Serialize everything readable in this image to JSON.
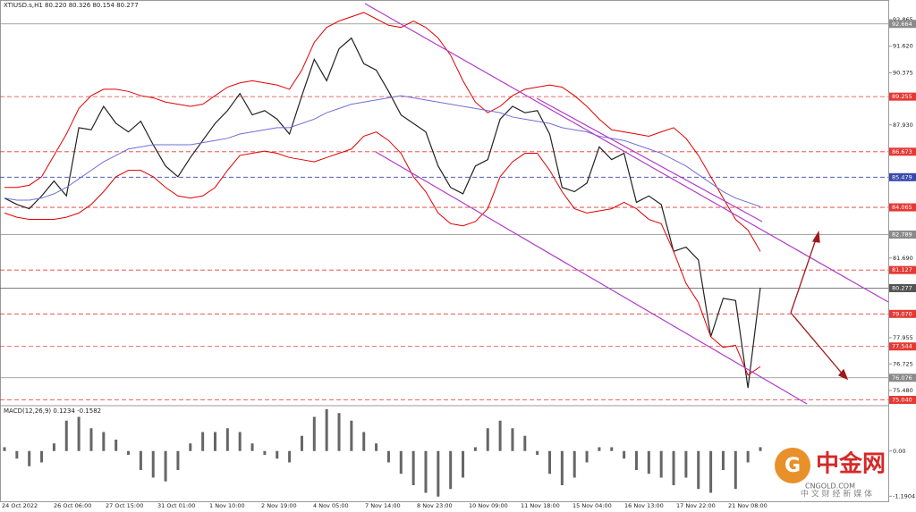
{
  "chart_data": {
    "type": "line",
    "header": "XTIUSD.s,H1  80.220 80.326 80.154 80.277",
    "x_labels": [
      "24 Oct 2022",
      "26 Oct 06:00",
      "27 Oct 15:00",
      "31 Oct 01:00",
      "1 Nov 10:00",
      "2 Nov 19:00",
      "4 Nov 05:00",
      "7 Nov 14:00",
      "8 Nov 23:00",
      "10 Nov 09:00",
      "11 Nov 18:00",
      "15 Nov 04:00",
      "16 Nov 13:00",
      "17 Nov 22:00",
      "21 Nov 08:00"
    ],
    "ylim": [
      74.81,
      93.45
    ],
    "yticks": [
      92.865,
      {
        "value": 91.62,
        "label": "91.620"
      },
      90.375,
      {
        "value": 87.93,
        "label": "87.930"
      },
      {
        "value": 81.69,
        "label": "81.690"
      },
      77.955,
      76.725,
      {
        "value": 75.48,
        "label": "75.480"
      }
    ],
    "series": [
      {
        "name": "Close",
        "color": "#222222",
        "values": [
          84.5,
          84.2,
          84.0,
          84.6,
          85.3,
          84.6,
          87.8,
          87.7,
          88.8,
          88.0,
          87.6,
          88.1,
          87.0,
          86.0,
          85.5,
          86.4,
          87.2,
          88.0,
          88.6,
          89.4,
          88.4,
          88.6,
          88.2,
          87.5,
          89.3,
          91.0,
          90.0,
          91.5,
          92.0,
          90.8,
          90.5,
          89.5,
          88.4,
          88.0,
          87.6,
          86.0,
          85.0,
          84.7,
          86.0,
          86.3,
          88.2,
          88.8,
          88.5,
          88.6,
          87.5,
          85.0,
          84.8,
          85.2,
          86.9,
          86.3,
          86.6,
          84.3,
          84.6,
          84.2,
          82.0,
          82.2,
          81.6,
          78.0,
          79.8,
          79.7,
          75.6,
          80.3
        ]
      },
      {
        "name": "BB Upper",
        "color": "#e00000",
        "values": [
          85.0,
          85.0,
          85.1,
          85.5,
          86.5,
          87.5,
          88.7,
          89.3,
          89.6,
          89.6,
          89.5,
          89.3,
          89.2,
          89.0,
          88.9,
          88.8,
          88.9,
          89.3,
          89.7,
          89.9,
          90.0,
          89.9,
          89.8,
          89.6,
          90.5,
          91.8,
          92.5,
          92.8,
          93.0,
          93.2,
          92.9,
          92.6,
          92.5,
          92.8,
          92.5,
          92.0,
          91.2,
          90.0,
          89.0,
          88.5,
          88.8,
          89.3,
          89.6,
          89.7,
          89.8,
          89.7,
          89.3,
          88.8,
          88.2,
          87.7,
          87.6,
          87.5,
          87.4,
          87.6,
          87.8,
          87.3,
          86.5,
          85.5,
          84.5,
          83.5,
          83.0,
          82.0
        ]
      },
      {
        "name": "BB Lower",
        "color": "#e00000",
        "values": [
          83.8,
          83.6,
          83.5,
          83.5,
          83.5,
          83.6,
          83.8,
          84.2,
          84.8,
          85.5,
          85.8,
          85.8,
          85.5,
          85.0,
          84.6,
          84.5,
          84.6,
          85.0,
          85.8,
          86.5,
          86.6,
          86.7,
          86.6,
          86.4,
          86.3,
          86.2,
          86.4,
          86.6,
          86.8,
          87.4,
          87.6,
          87.2,
          86.6,
          85.5,
          84.8,
          83.8,
          83.3,
          83.2,
          83.4,
          84.0,
          85.5,
          86.2,
          86.6,
          86.6,
          85.8,
          84.8,
          84.0,
          83.8,
          83.9,
          84.0,
          84.3,
          84.0,
          83.5,
          83.3,
          82.0,
          80.5,
          79.6,
          78.0,
          77.5,
          77.6,
          76.2,
          76.6
        ]
      },
      {
        "name": "MA",
        "color": "#6f6fd8",
        "values": [
          84.5,
          84.4,
          84.4,
          84.5,
          84.7,
          85.0,
          85.4,
          85.8,
          86.2,
          86.5,
          86.8,
          86.9,
          87.0,
          87.0,
          87.0,
          87.0,
          87.1,
          87.2,
          87.3,
          87.5,
          87.6,
          87.7,
          87.8,
          87.8,
          88.0,
          88.2,
          88.5,
          88.7,
          88.9,
          89.0,
          89.1,
          89.2,
          89.3,
          89.2,
          89.1,
          89.0,
          88.9,
          88.8,
          88.7,
          88.6,
          88.5,
          88.3,
          88.2,
          88.1,
          88.0,
          87.8,
          87.7,
          87.6,
          87.4,
          87.3,
          87.2,
          87.0,
          86.8,
          86.6,
          86.3,
          86.0,
          85.6,
          85.2,
          84.8,
          84.5,
          84.3,
          84.1
        ]
      }
    ],
    "levels": [
      {
        "value": 92.664,
        "color": "#8a8a8a",
        "style": "solid"
      },
      {
        "value": 89.255,
        "color": "#e53935",
        "style": "dashed"
      },
      {
        "value": 86.673,
        "color": "#e53935",
        "style": "dashed"
      },
      {
        "value": 85.479,
        "color": "#3949ab",
        "style": "dashed"
      },
      {
        "value": 84.065,
        "color": "#e53935",
        "style": "dashed"
      },
      {
        "value": 82.789,
        "color": "#8a8a8a",
        "style": "solid"
      },
      {
        "value": 81.127,
        "color": "#e53935",
        "style": "dashed"
      },
      {
        "value": 80.277,
        "color": "#555555",
        "style": "solid"
      },
      {
        "value": 79.07,
        "label": "79.070",
        "color": "#e53935",
        "style": "dashed"
      },
      {
        "value": 77.544,
        "color": "#e53935",
        "style": "dashed"
      },
      {
        "value": 76.076,
        "color": "#8a8a8a",
        "style": "solid"
      },
      {
        "value": 75.04,
        "label": "75.040",
        "color": "#e53935",
        "style": "dashed"
      }
    ],
    "macd": {
      "label": "MACD(12,26,9) 0.1234 -0.1582",
      "color": "#666666",
      "ylim": [
        -1.3,
        1.1
      ],
      "yticks": [
        {
          "value": 0,
          "label": "0.00"
        },
        {
          "value": -1.1904,
          "label": "-1.1904"
        }
      ],
      "values": [
        0.1,
        -0.2,
        -0.4,
        -0.3,
        0.2,
        0.8,
        0.9,
        0.6,
        0.5,
        0.3,
        -0.1,
        -0.5,
        -0.7,
        -0.8,
        -0.5,
        0.2,
        0.5,
        0.5,
        0.6,
        0.5,
        0.2,
        -0.1,
        -0.2,
        -0.3,
        0.4,
        0.9,
        1.1,
        1.0,
        0.8,
        0.5,
        0.2,
        -0.3,
        -0.6,
        -0.9,
        -1.1,
        -1.2,
        -1.0,
        -0.7,
        0.1,
        0.6,
        0.8,
        0.6,
        0.4,
        -0.1,
        -0.6,
        -0.9,
        -0.7,
        -0.3,
        0.1,
        0.1,
        -0.2,
        -0.5,
        -0.6,
        -0.7,
        -0.9,
        -0.7,
        -1.0,
        -1.1,
        -0.5,
        -1.0,
        -0.3,
        0.1
      ]
    }
  },
  "watermark": {
    "name": "中金网",
    "site": "CNGOLD.COM",
    "slogan": "中 文 财 经 新 媒 体"
  }
}
